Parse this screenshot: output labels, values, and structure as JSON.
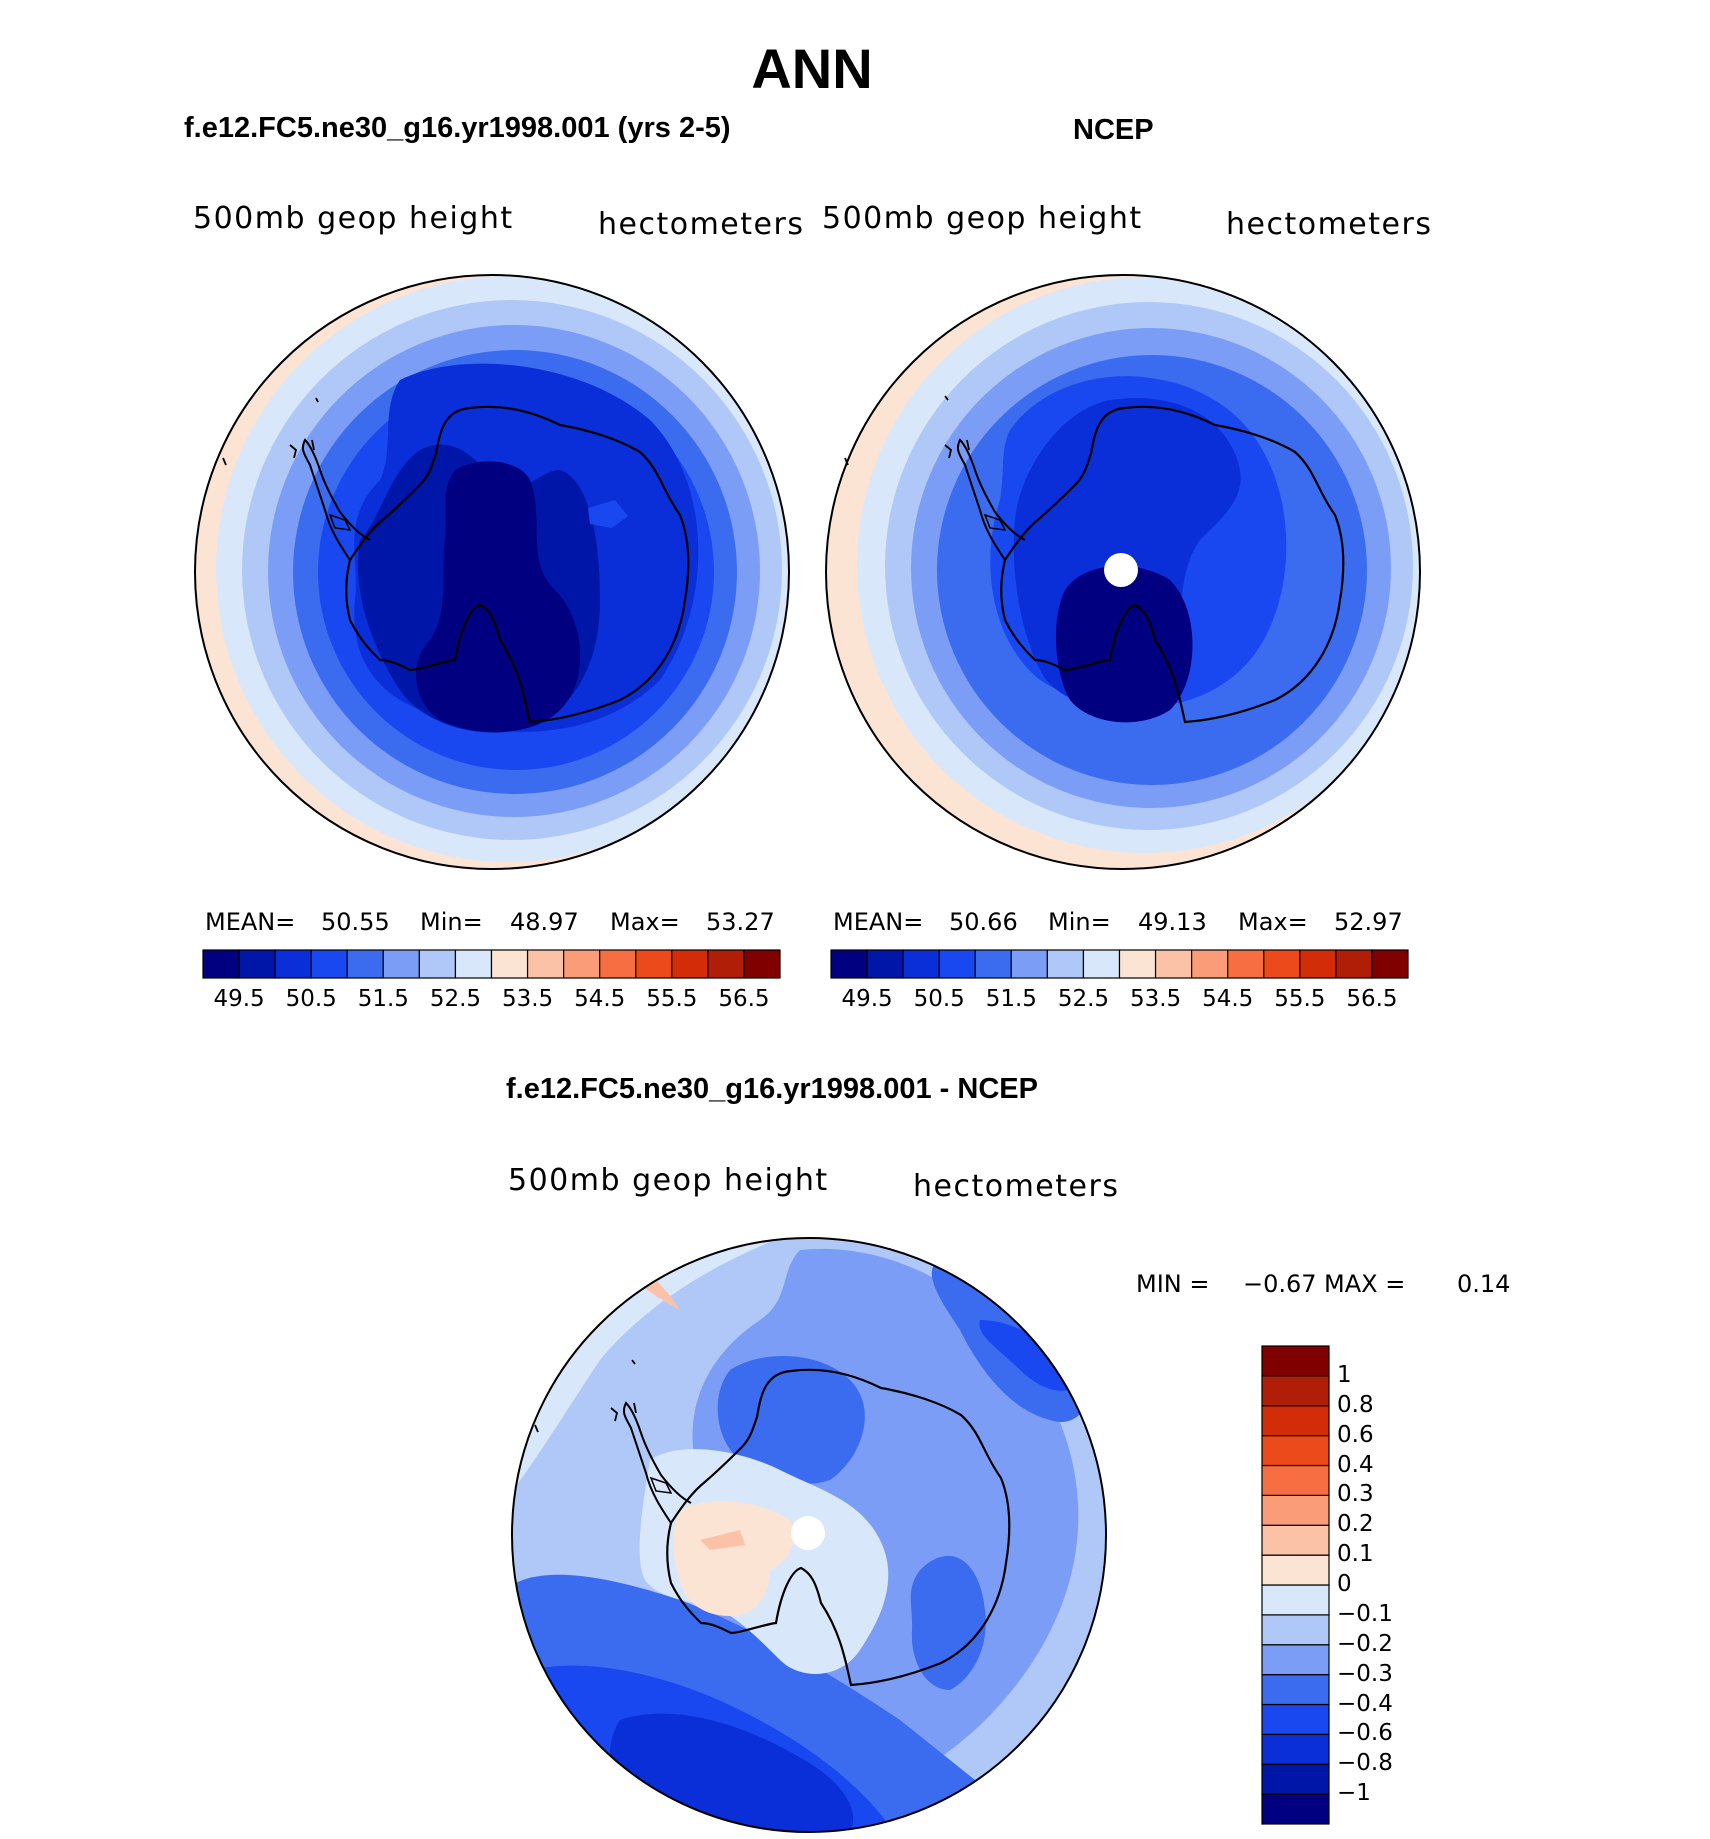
{
  "title": "ANN",
  "panels": [
    {
      "title": "f.e12.FC5.ne30_g16.yr1998.001 (yrs 2-5)",
      "variable": "500mb geop height",
      "units": "hectometers",
      "stats": {
        "mean_label": "MEAN=",
        "mean": "50.55",
        "min_label": "Min=",
        "min": "48.97",
        "max_label": "Max=",
        "max": "53.27"
      }
    },
    {
      "title": "NCEP",
      "variable": "500mb geop height",
      "units": "hectometers",
      "stats": {
        "mean_label": "MEAN=",
        "mean": "50.66",
        "min_label": "Min=",
        "min": "49.13",
        "max_label": "Max=",
        "max": "52.97"
      }
    },
    {
      "title": "f.e12.FC5.ne30_g16.yr1998.001 - NCEP",
      "variable": "500mb geop height",
      "units": "hectometers",
      "stats": {
        "min_label": "MIN =",
        "min": "−0.67",
        "max_label": "MAX =",
        "max": "0.14"
      }
    }
  ],
  "colorbar_abs": {
    "colors": [
      "#000080",
      "#0016a8",
      "#0a2ed8",
      "#1948f0",
      "#3b6cf0",
      "#7c9df5",
      "#b0c8f8",
      "#d8e8fa",
      "#fce4d4",
      "#fcc2a8",
      "#fb9c78",
      "#f66e42",
      "#ec4a1a",
      "#d32c08",
      "#b01e08",
      "#800000"
    ],
    "ticks": [
      "49.5",
      "50.5",
      "51.5",
      "52.5",
      "53.5",
      "54.5",
      "55.5",
      "56.5"
    ]
  },
  "colorbar_diff": {
    "colors": [
      "#000080",
      "#0016a8",
      "#0a2ed8",
      "#1948f0",
      "#3b6cf0",
      "#7c9df5",
      "#b0c8f8",
      "#d8e8fa",
      "#fce4d4",
      "#fcc2a8",
      "#fb9c78",
      "#f66e42",
      "#ec4a1a",
      "#d32c08",
      "#b01e08",
      "#800000"
    ],
    "ticks": [
      "−1",
      "−0.8",
      "−0.6",
      "−0.4",
      "−0.3",
      "−0.2",
      "−0.1",
      "0",
      "0.1",
      "0.2",
      "0.3",
      "0.4",
      "0.6",
      "0.8",
      "1"
    ]
  },
  "colors": {
    "continent_outline": "#000000",
    "pole_hole": "#ffffff"
  }
}
